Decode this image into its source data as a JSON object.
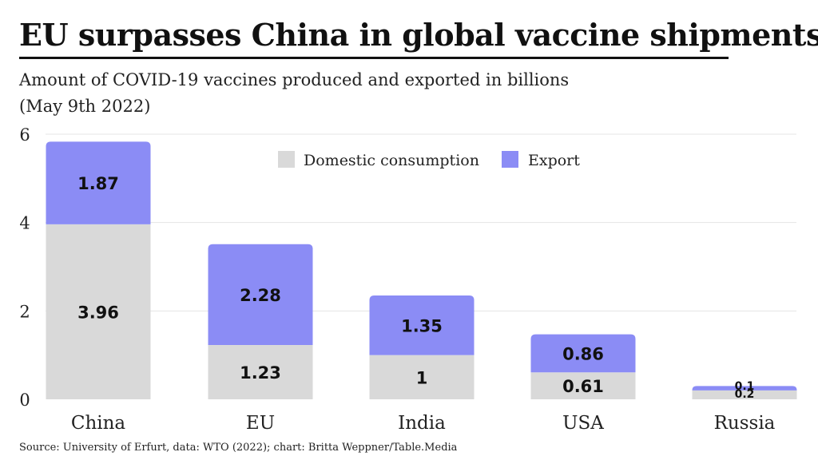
{
  "header": {
    "title": "EU surpasses China in global vaccine shipments",
    "subtitle_line1": "Amount of COVID-19 vaccines produced and exported in billions",
    "subtitle_line2": "(May 9th 2022)"
  },
  "footer": {
    "source": "Source: University of Erfurt, data: WTO (2022); chart: Britta Weppner/Table.Media"
  },
  "colors": {
    "domestic": "#d9d9d9",
    "export": "#8b8cf5",
    "grid": "#e4e4e4",
    "text": "#222222"
  },
  "chart_data": {
    "type": "bar",
    "stacked": true,
    "categories": [
      "China",
      "EU",
      "India",
      "USA",
      "Russia"
    ],
    "series": [
      {
        "name": "Domestic consumption",
        "values": [
          3.96,
          1.23,
          1,
          0.61,
          0.2
        ],
        "labels": [
          "3.96",
          "1.23",
          "1",
          "0.61",
          "0.2"
        ]
      },
      {
        "name": "Export",
        "values": [
          1.87,
          2.28,
          1.35,
          0.86,
          0.1
        ],
        "labels": [
          "1.87",
          "2.28",
          "1.35",
          "0.86",
          "0.1"
        ]
      }
    ],
    "ylim": [
      0,
      6
    ],
    "yticks": [
      0,
      2,
      4,
      6
    ],
    "ytick_labels": [
      "0",
      "2",
      "4",
      "6"
    ],
    "grid": true,
    "legend_position": "top-center"
  }
}
